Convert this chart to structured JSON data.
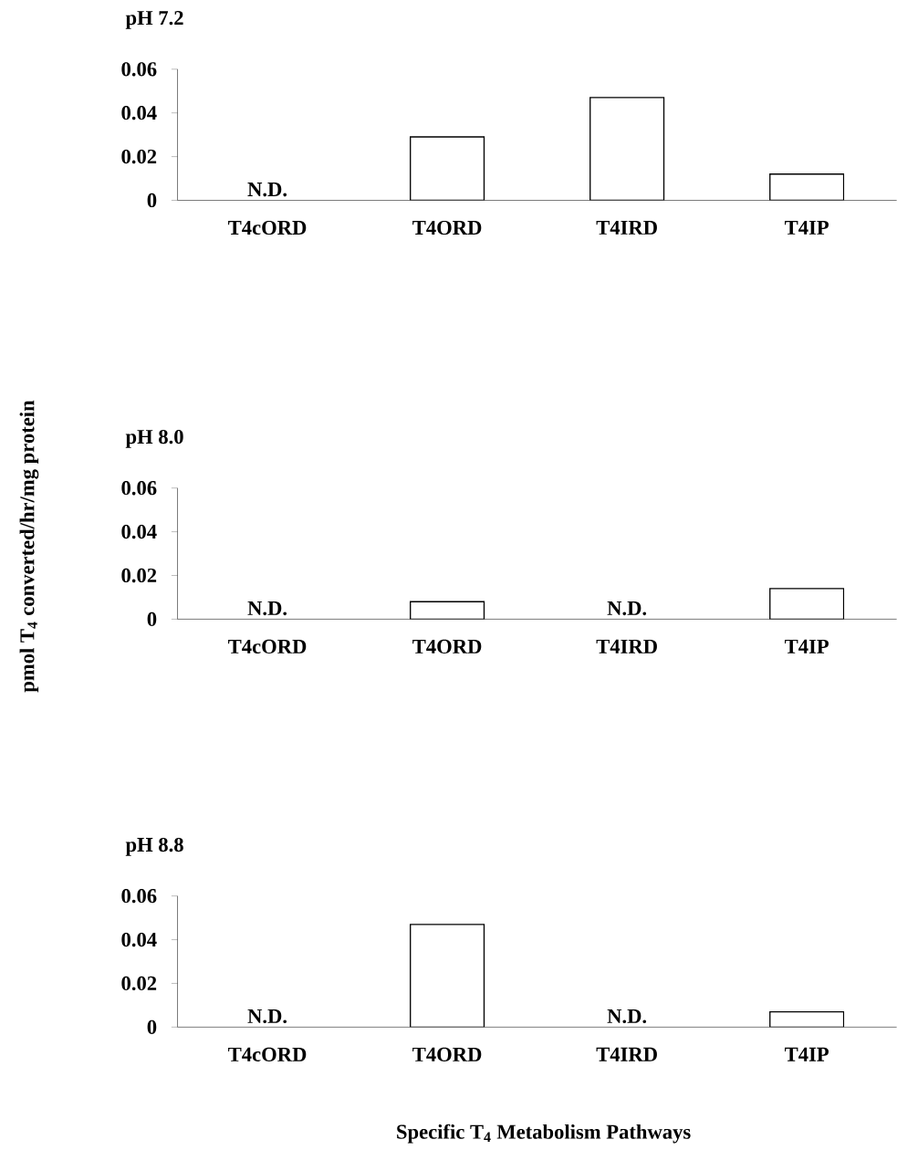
{
  "chart_data": [
    {
      "type": "bar",
      "title": "pH 7.2",
      "categories": [
        "T4cORD",
        "T4ORD",
        "T4IRD",
        "T4IP"
      ],
      "values": [
        null,
        0.029,
        0.047,
        0.012
      ],
      "color": "#ffffff",
      "ylim": [
        0,
        0.06
      ],
      "yticks": [
        {
          "value": 0,
          "label": "0"
        },
        {
          "value": 0.02,
          "label": "0.02"
        },
        {
          "value": 0.04,
          "label": "0.04"
        },
        {
          "value": 0.06,
          "label": "0.06"
        }
      ],
      "grid": false,
      "annotations": [
        "N.D."
      ]
    },
    {
      "type": "bar",
      "title": "pH 8.0",
      "ylabel": "pmol T$_{4}$ converted/hr/mg protein",
      "categories": [
        "T4cORD",
        "T4ORD",
        "T4IRD",
        "T4IP"
      ],
      "values": [
        null,
        0.008,
        null,
        0.014
      ],
      "color": "#ffffff",
      "ylim": [
        0,
        0.06
      ],
      "yticks": [
        {
          "value": 0,
          "label": "0"
        },
        {
          "value": 0.02,
          "label": "0.02"
        },
        {
          "value": 0.04,
          "label": "0.04"
        },
        {
          "value": 0.06,
          "label": "0.06"
        }
      ],
      "grid": false,
      "annotations": [
        "N.D.",
        "N.D."
      ]
    },
    {
      "type": "bar",
      "title": "pH 8.8",
      "xlabel": "Specific T$_{4}$ Metabolism Pathways",
      "categories": [
        "T4cORD",
        "T4ORD",
        "T4IRD",
        "T4IP"
      ],
      "values": [
        null,
        0.047,
        null,
        0.007
      ],
      "color": "#ffffff",
      "ylim": [
        0,
        0.06
      ],
      "yticks": [
        {
          "value": 0,
          "label": "0"
        },
        {
          "value": 0.02,
          "label": "0.02"
        },
        {
          "value": 0.04,
          "label": "0.04"
        },
        {
          "value": 0.06,
          "label": "0.06"
        }
      ],
      "grid": false,
      "annotations": [
        "N.D.",
        "N.D."
      ]
    }
  ]
}
